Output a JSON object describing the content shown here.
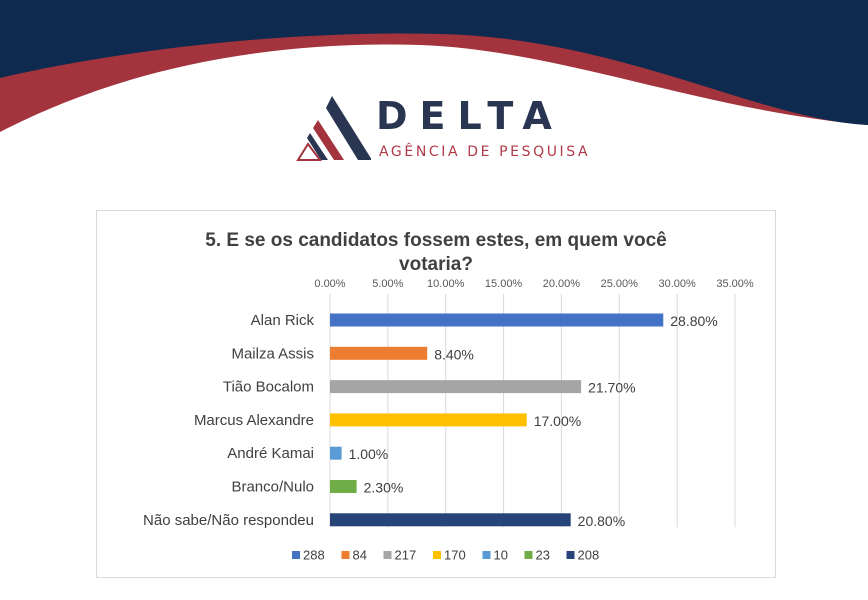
{
  "brand": {
    "name": "DELTA",
    "tagline": "AGÊNCIA DE PESQUISA",
    "colors": {
      "navy": "#0f2a4f",
      "red": "#a3343e",
      "text": "#2a3552"
    }
  },
  "chart_data": {
    "type": "bar",
    "orientation": "horizontal",
    "title_line1": "5. E se os candidatos fossem estes, em quem você",
    "title_line2": "votaria?",
    "categories": [
      "Alan Rick",
      "Mailza Assis",
      "Tião Bocalom",
      "Marcus Alexandre",
      "André Kamai",
      "Branco/Nulo",
      "Não sabe/Não respondeu"
    ],
    "values": [
      28.8,
      8.4,
      21.7,
      17.0,
      1.0,
      2.3,
      20.8
    ],
    "value_labels": [
      "28.80%",
      "8.40%",
      "21.70%",
      "17.00%",
      "1.00%",
      "2.30%",
      "20.80%"
    ],
    "colors": [
      "#4472c4",
      "#ed7d31",
      "#a5a5a5",
      "#ffc000",
      "#5b9bd5",
      "#70ad47",
      "#264478"
    ],
    "xlim": [
      0,
      35
    ],
    "xticks": [
      "0.00%",
      "5.00%",
      "10.00%",
      "15.00%",
      "20.00%",
      "25.00%",
      "30.00%",
      "35.00%"
    ],
    "x_axis_position": "top",
    "grid": true,
    "legend_position": "bottom",
    "legend": [
      "288",
      "84",
      "217",
      "170",
      "10",
      "23",
      "208"
    ]
  }
}
